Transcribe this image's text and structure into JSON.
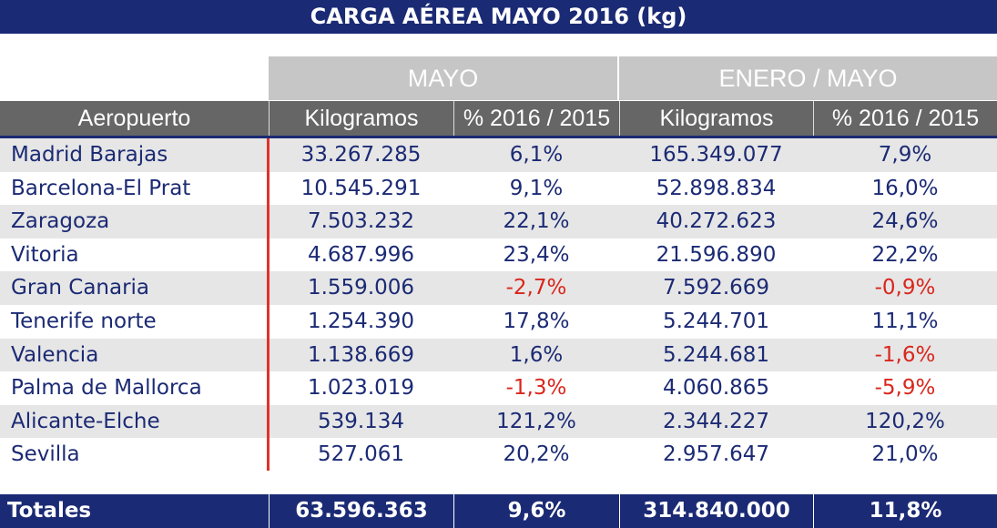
{
  "title": "CARGA AÉREA MAYO 2016 (kg)",
  "groups": [
    "MAYO",
    "ENERO / MAYO"
  ],
  "headers": [
    "Aeropuerto",
    "Kilogramos",
    "% 2016 / 2015",
    "Kilogramos",
    "% 2016 / 2015"
  ],
  "rows": [
    [
      "Madrid Barajas",
      "33.267.285",
      "6,1%",
      "165.349.077",
      "7,9%"
    ],
    [
      "Barcelona-El Prat",
      "10.545.291",
      "9,1%",
      "52.898.834",
      "16,0%"
    ],
    [
      "Zaragoza",
      "7.503.232",
      "22,1%",
      "40.272.623",
      "24,6%"
    ],
    [
      "Vitoria",
      "4.687.996",
      "23,4%",
      "21.596.890",
      "22,2%"
    ],
    [
      "Gran Canaria",
      "1.559.006",
      "-2,7%",
      "7.592.669",
      "-0,9%"
    ],
    [
      "Tenerife norte",
      "1.254.390",
      "17,8%",
      "5.244.701",
      "11,1%"
    ],
    [
      "Valencia",
      "1.138.669",
      "1,6%",
      "5.244.681",
      "-1,6%"
    ],
    [
      "Palma de Mallorca",
      "1.023.019",
      "-1,3%",
      "4.060.865",
      "-5,9%"
    ],
    [
      "Alicante-Elche",
      "539.134",
      "121,2%",
      "2.344.227",
      "120,2%"
    ],
    [
      "Sevilla",
      "527.061",
      "20,2%",
      "2.957.647",
      "21,0%"
    ]
  ],
  "totals": [
    "Totales",
    "63.596.363",
    "9,6%",
    "314.840.000",
    "11,8%"
  ],
  "colors": {
    "navy": "#1b2a74",
    "negative": "#d9261c",
    "header_grey": "#666666",
    "group_grey": "#c6c6c6"
  }
}
